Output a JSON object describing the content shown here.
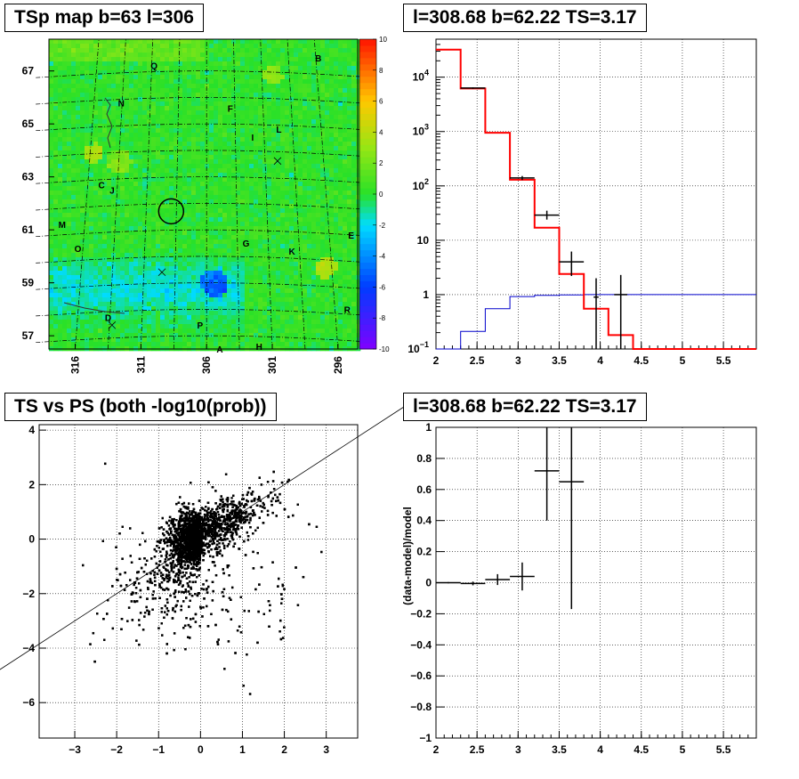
{
  "colors": {
    "model_line": "#ff0000",
    "background_line": "#0000cc",
    "data_points": "#000000",
    "map_base": "#2bdc2b"
  },
  "chart_data": [
    {
      "id": "tsmap",
      "type": "heatmap",
      "title": "TSp map b=63 l=306",
      "x_ticks": [
        "316",
        "311",
        "306",
        "301",
        "296"
      ],
      "x_tick_values": [
        316,
        311,
        306,
        301,
        296
      ],
      "xlim": [
        318,
        294.5
      ],
      "y_ticks": [
        "57",
        "59",
        "61",
        "63",
        "65",
        "67"
      ],
      "y_tick_values": [
        57,
        59,
        61,
        63,
        65,
        67
      ],
      "ylim": [
        56.5,
        68.2
      ],
      "colorbar_ticks": [
        "10",
        "8",
        "6",
        "4",
        "2",
        "0",
        "-2",
        "-4",
        "-6",
        "-8",
        "-10"
      ],
      "colorbar_range": [
        -10,
        10
      ],
      "source_circle": {
        "l": 308.7,
        "b": 61.7
      },
      "crosses": [
        {
          "l": 300.6,
          "b": 63.6
        },
        {
          "l": 309.4,
          "b": 59.4
        },
        {
          "l": 313.2,
          "b": 57.4
        }
      ],
      "region_labels": [
        {
          "text": "Q",
          "l": 310.0,
          "b": 67.2
        },
        {
          "text": "B",
          "l": 297.5,
          "b": 67.5
        },
        {
          "text": "N",
          "l": 312.5,
          "b": 65.8
        },
        {
          "text": "F",
          "l": 304.2,
          "b": 65.6
        },
        {
          "text": "L",
          "l": 300.5,
          "b": 64.8
        },
        {
          "text": "I",
          "l": 302.5,
          "b": 64.5
        },
        {
          "text": "C",
          "l": 314.0,
          "b": 62.7
        },
        {
          "text": "J",
          "l": 313.2,
          "b": 62.5
        },
        {
          "text": "M",
          "l": 317.0,
          "b": 61.2
        },
        {
          "text": "E",
          "l": 295.0,
          "b": 60.8
        },
        {
          "text": "O",
          "l": 315.8,
          "b": 60.3
        },
        {
          "text": "G",
          "l": 303.0,
          "b": 60.5
        },
        {
          "text": "K",
          "l": 299.5,
          "b": 60.2
        },
        {
          "text": "R",
          "l": 295.3,
          "b": 58.0
        },
        {
          "text": "D",
          "l": 313.5,
          "b": 57.7
        },
        {
          "text": "P",
          "l": 306.5,
          "b": 57.4
        },
        {
          "text": "A",
          "l": 305.0,
          "b": 56.5
        },
        {
          "text": "H",
          "l": 302.0,
          "b": 56.6
        }
      ]
    },
    {
      "id": "spectrum",
      "type": "line",
      "title": "l=308.68 b=62.22 TS=3.17",
      "x_ticks": [
        "2",
        "2.5",
        "3",
        "3.5",
        "4",
        "4.5",
        "5",
        "5.5"
      ],
      "x_tick_values": [
        2,
        2.5,
        3,
        3.5,
        4,
        4.5,
        5,
        5.5
      ],
      "xlim": [
        2,
        5.9
      ],
      "y_scale": "log",
      "ylim": [
        0.1,
        50000
      ],
      "y_ticks": [
        {
          "value": 0.1,
          "base": "10",
          "exp": "−1"
        },
        {
          "value": 1,
          "base": "1",
          "exp": ""
        },
        {
          "value": 10,
          "base": "10",
          "exp": ""
        },
        {
          "value": 100,
          "base": "10",
          "exp": "2"
        },
        {
          "value": 1000,
          "base": "10",
          "exp": "3"
        },
        {
          "value": 10000,
          "base": "10",
          "exp": "4"
        }
      ],
      "bin_edges": [
        2.0,
        2.3,
        2.6,
        2.9,
        3.2,
        3.5,
        3.8,
        4.1,
        4.4,
        4.7,
        5.0,
        5.3,
        5.6,
        5.9
      ],
      "series": [
        {
          "values": [
            32000,
            6200,
            950,
            130,
            17,
            2.4,
            0.55,
            0.18,
            0.1,
            0.1,
            0.1,
            0.1,
            0.1
          ]
        },
        {
          "values": [
            0.1,
            0.21,
            0.55,
            0.92,
            0.97,
            0.99,
            1.0,
            1.0,
            1.0,
            1.0,
            1.0,
            1.0,
            1.0
          ]
        }
      ],
      "data_points": [
        {
          "x": 2.45,
          "y": 6300,
          "xerr": 0.15,
          "ylo": 6100,
          "yhi": 6500
        },
        {
          "x": 3.05,
          "y": 140,
          "xerr": 0.15,
          "ylo": 128,
          "yhi": 152
        },
        {
          "x": 3.35,
          "y": 29,
          "xerr": 0.15,
          "ylo": 24,
          "yhi": 35
        },
        {
          "x": 3.65,
          "y": 4.0,
          "xerr": 0.15,
          "ylo": 2.2,
          "yhi": 6.2
        },
        {
          "x": 3.95,
          "y": 0.9,
          "xerr": 0.03,
          "ylo": 0.1,
          "yhi": 2.0
        },
        {
          "x": 4.25,
          "y": 1.0,
          "xerr": 0.08,
          "ylo": 0.1,
          "yhi": 2.3
        }
      ]
    },
    {
      "id": "scatter",
      "type": "scatter",
      "title": "TS vs PS (both -log10(prob))",
      "x_ticks": [
        "−3",
        "−2",
        "−1",
        "0",
        "1",
        "2",
        "3"
      ],
      "x_tick_values": [
        -3,
        -2,
        -1,
        0,
        1,
        2,
        3
      ],
      "xlim": [
        -3.85,
        3.75
      ],
      "y_ticks": [
        "−6",
        "−4",
        "−2",
        "0",
        "2",
        "4"
      ],
      "y_tick_values": [
        -6,
        -4,
        -2,
        0,
        2,
        4
      ],
      "ylim": [
        -7.3,
        4.2
      ],
      "reference_line": {
        "slope": 1,
        "intercept": 0,
        "x_from": -5.0,
        "x_to": 5.0
      },
      "point_count": 5000
    },
    {
      "id": "residual",
      "type": "scatter",
      "title": "l=308.68 b=62.22 TS=3.17",
      "ylabel": "(data-model)/model",
      "x_ticks": [
        "2",
        "2.5",
        "3",
        "3.5",
        "4",
        "4.5",
        "5",
        "5.5"
      ],
      "x_tick_values": [
        2,
        2.5,
        3,
        3.5,
        4,
        4.5,
        5,
        5.5
      ],
      "xlim": [
        2,
        5.9
      ],
      "y_ticks": [
        "−1",
        "−0.8",
        "−0.6",
        "−0.4",
        "−0.2",
        "0",
        "0.2",
        "0.4",
        "0.6",
        "0.8",
        "1"
      ],
      "y_tick_values": [
        -1,
        -0.8,
        -0.6,
        -0.4,
        -0.2,
        0,
        0.2,
        0.4,
        0.6,
        0.8,
        1
      ],
      "ylim": [
        -1,
        1
      ],
      "points": [
        {
          "x": 2.15,
          "y": 0.0,
          "xerr": 0.15,
          "yerr_lo": 0.004,
          "yerr_hi": 0.004
        },
        {
          "x": 2.45,
          "y": -0.005,
          "xerr": 0.15,
          "yerr_lo": 0.012,
          "yerr_hi": 0.012
        },
        {
          "x": 2.75,
          "y": 0.02,
          "xerr": 0.15,
          "yerr_lo": 0.035,
          "yerr_hi": 0.035
        },
        {
          "x": 3.05,
          "y": 0.04,
          "xerr": 0.15,
          "yerr_lo": 0.09,
          "yerr_hi": 0.09
        },
        {
          "x": 3.35,
          "y": 0.72,
          "xerr": 0.15,
          "yerr_lo": 0.32,
          "yerr_hi": 0.28
        },
        {
          "x": 3.65,
          "y": 0.65,
          "xerr": 0.15,
          "yerr_lo": 0.82,
          "yerr_hi": 0.35
        }
      ]
    }
  ]
}
